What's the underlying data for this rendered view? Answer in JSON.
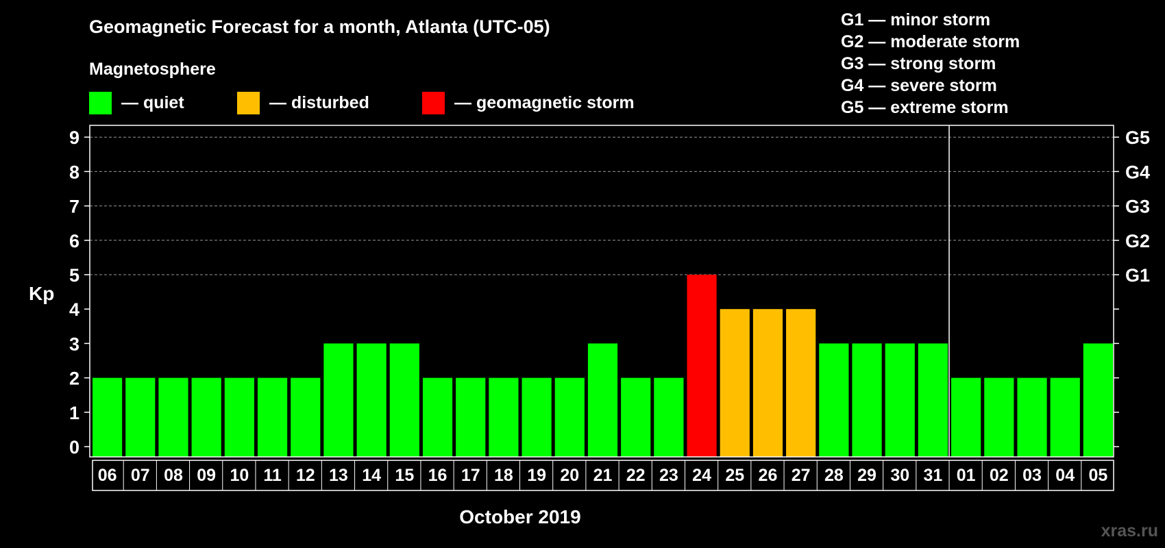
{
  "chart_data": {
    "type": "bar",
    "title": "Geomagnetic Forecast for a month, Atlanta (UTC-05)",
    "legend_title": "Magnetosphere",
    "legend": [
      {
        "key": "quiet",
        "label": "— quiet",
        "color": "#00ff00"
      },
      {
        "key": "disturbed",
        "label": "— disturbed",
        "color": "#ffbf00"
      },
      {
        "key": "storm",
        "label": "— geomagnetic storm",
        "color": "#ff0000"
      }
    ],
    "storm_scale": [
      "G1 — minor storm",
      "G2 — moderate storm",
      "G3 — strong storm",
      "G4 — severe storm",
      "G5 — extreme storm"
    ],
    "ylabel": "Kp",
    "xlabel": "October 2019",
    "ylim": [
      0,
      9
    ],
    "yticks": [
      0,
      1,
      2,
      3,
      4,
      5,
      6,
      7,
      8,
      9
    ],
    "right_ticks": [
      {
        "value": 5,
        "label": "G1"
      },
      {
        "value": 6,
        "label": "G2"
      },
      {
        "value": 7,
        "label": "G3"
      },
      {
        "value": 8,
        "label": "G4"
      },
      {
        "value": 9,
        "label": "G5"
      }
    ],
    "grid": "dashed horizontal at Kp 5-9",
    "month_divider_after": "31",
    "categories": [
      "06",
      "07",
      "08",
      "09",
      "10",
      "11",
      "12",
      "13",
      "14",
      "15",
      "16",
      "17",
      "18",
      "19",
      "20",
      "21",
      "22",
      "23",
      "24",
      "25",
      "26",
      "27",
      "28",
      "29",
      "30",
      "31",
      "01",
      "02",
      "03",
      "04",
      "05"
    ],
    "values": [
      2,
      2,
      2,
      2,
      2,
      2,
      2,
      3,
      3,
      3,
      2,
      2,
      2,
      2,
      2,
      3,
      2,
      2,
      5,
      4,
      4,
      4,
      3,
      3,
      3,
      3,
      2,
      2,
      2,
      2,
      3
    ],
    "colors": {
      "quiet": "#00ff00",
      "disturbed": "#ffbf00",
      "storm": "#ff0000"
    }
  },
  "watermark": "xras.ru"
}
